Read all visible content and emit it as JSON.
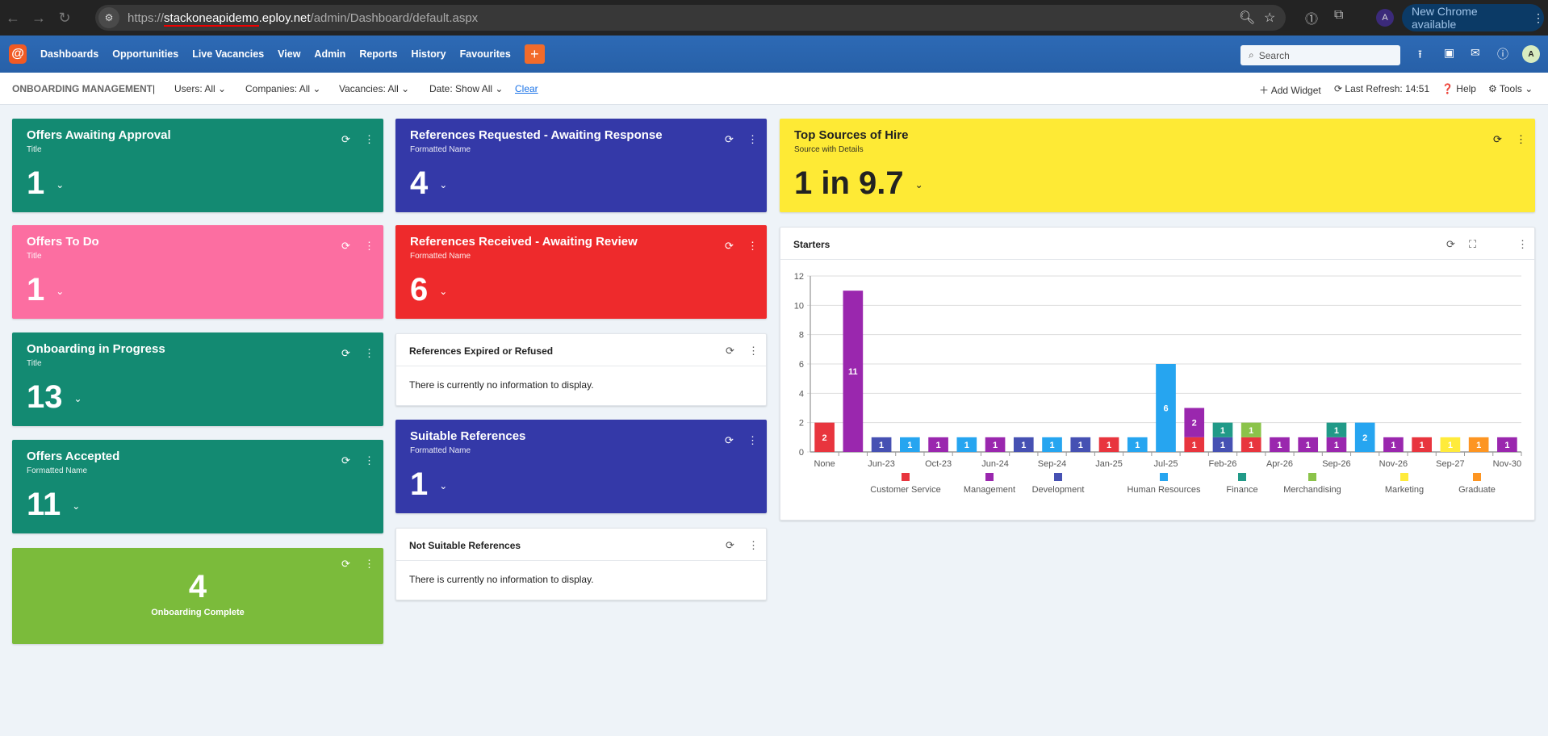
{
  "browser": {
    "url_prefix": "https://",
    "url_host_sub": "stackoneapidemo",
    "url_host": ".eploy.net",
    "url_path": "/admin/Dashboard/default.aspx",
    "profile": "A",
    "update_label": "New Chrome available"
  },
  "nav": {
    "items": [
      "Dashboards",
      "Opportunities",
      "Live Vacancies",
      "View",
      "Admin",
      "Reports",
      "History",
      "Favourites"
    ],
    "add": "+",
    "search_placeholder": "Search",
    "user_initial": "A"
  },
  "toolbar": {
    "title": "ONBOARDING MANAGEMENT",
    "sep": "|",
    "filters": [
      "Users: All",
      "Companies: All",
      "Vacancies: All",
      "Date: Show All"
    ],
    "clear": "Clear",
    "add_widget": "Add Widget",
    "last_refresh": "Last Refresh: 14:51",
    "help": "Help",
    "tools": "Tools"
  },
  "cards": [
    {
      "title": "Offers Awaiting Approval",
      "subtitle": "Title",
      "value": "1",
      "color": "#138a72"
    },
    {
      "title": "Offers To Do",
      "subtitle": "Title",
      "value": "1",
      "color": "#fc6ea1"
    },
    {
      "title": "Onboarding in Progress",
      "subtitle": "Title",
      "value": "13",
      "color": "#138a72"
    },
    {
      "title": "Offers Accepted",
      "subtitle": "Formatted Name",
      "value": "11",
      "color": "#138a72"
    },
    {
      "title": "References Requested - Awaiting Response",
      "subtitle": "Formatted Name",
      "value": "4",
      "color": "#3439a8"
    },
    {
      "title": "References Received - Awaiting Review",
      "subtitle": "Formatted Name",
      "value": "6",
      "color": "#ee2a2c"
    },
    {
      "title": "Suitable References",
      "subtitle": "Formatted Name",
      "value": "1",
      "color": "#3439a8"
    },
    {
      "title": "Top Sources of Hire",
      "subtitle": "Source with Details",
      "value": "1 in 9.7",
      "color": "#feea35"
    }
  ],
  "complete": {
    "value": "4",
    "label": "Onboarding Complete",
    "color": "#7bbb3b"
  },
  "empty_widgets": [
    {
      "title": "References Expired or Refused",
      "message": "There is currently no information to display."
    },
    {
      "title": "Not Suitable References",
      "message": "There is currently no information to display."
    }
  ],
  "starters": {
    "title": "Starters"
  },
  "chart_data": {
    "type": "bar",
    "stacked": true,
    "ylim": [
      0,
      12
    ],
    "yticks": [
      0,
      2,
      4,
      6,
      8,
      10,
      12
    ],
    "grid": true,
    "legend": "bottom",
    "categories": [
      "None",
      "",
      "Jun-23",
      "",
      "Oct-23",
      "",
      "Jun-24",
      "",
      "Sep-24",
      "",
      "Jan-25",
      "",
      "Jul-25",
      "",
      "Feb-26",
      "",
      "Apr-26",
      "",
      "Sep-26",
      "",
      "Nov-26",
      "",
      "Sep-27",
      "",
      "Nov-30"
    ],
    "series": [
      {
        "name": "Customer Service",
        "color": "#e8353e",
        "values": [
          2,
          0,
          0,
          0,
          0,
          0,
          0,
          0,
          0,
          0,
          1,
          0,
          0,
          1,
          0,
          1,
          0,
          0,
          0,
          0,
          0,
          1,
          0,
          0,
          0
        ]
      },
      {
        "name": "Management",
        "color": "#9a27ae",
        "values": [
          0,
          11,
          0,
          0,
          1,
          0,
          1,
          0,
          0,
          0,
          0,
          0,
          0,
          2,
          0,
          0,
          1,
          1,
          1,
          0,
          1,
          0,
          0,
          0,
          1
        ]
      },
      {
        "name": "Development",
        "color": "#4651b3",
        "values": [
          0,
          0,
          1,
          0,
          0,
          0,
          0,
          1,
          0,
          1,
          0,
          0,
          0,
          0,
          1,
          0,
          0,
          0,
          0,
          0,
          0,
          0,
          0,
          0,
          0
        ]
      },
      {
        "name": "Human Resources",
        "color": "#26a5f0",
        "values": [
          0,
          0,
          0,
          1,
          0,
          1,
          0,
          0,
          1,
          0,
          0,
          1,
          6,
          0,
          0,
          0,
          0,
          0,
          0,
          2,
          0,
          0,
          0,
          0,
          0
        ]
      },
      {
        "name": "Finance",
        "color": "#219a88",
        "values": [
          0,
          0,
          0,
          0,
          0,
          0,
          0,
          0,
          0,
          0,
          0,
          0,
          0,
          0,
          1,
          0,
          0,
          0,
          1,
          0,
          0,
          0,
          0,
          0,
          0
        ]
      },
      {
        "name": "Merchandising",
        "color": "#8bc34a",
        "values": [
          0,
          0,
          0,
          0,
          0,
          0,
          0,
          0,
          0,
          0,
          0,
          0,
          0,
          0,
          0,
          1,
          0,
          0,
          0,
          0,
          0,
          0,
          0,
          0,
          0
        ]
      },
      {
        "name": "Marketing",
        "color": "#ffeb3b",
        "values": [
          0,
          0,
          0,
          0,
          0,
          0,
          0,
          0,
          0,
          0,
          0,
          0,
          0,
          0,
          0,
          0,
          0,
          0,
          0,
          0,
          0,
          0,
          1,
          0,
          0
        ]
      },
      {
        "name": "Graduate",
        "color": "#fd9522",
        "values": [
          0,
          0,
          0,
          0,
          0,
          0,
          0,
          0,
          0,
          0,
          0,
          0,
          0,
          0,
          0,
          0,
          0,
          0,
          0,
          0,
          0,
          0,
          0,
          1,
          0
        ]
      }
    ]
  }
}
